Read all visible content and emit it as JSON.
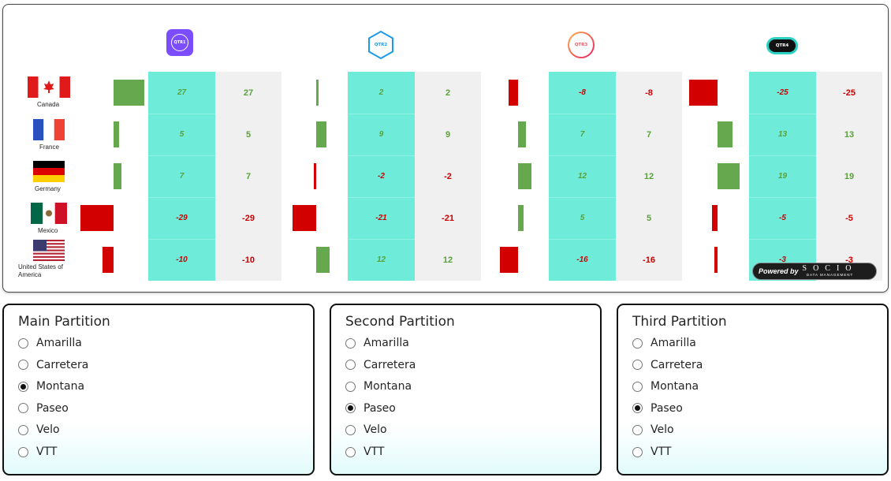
{
  "quarters": [
    "QTR1",
    "QTR2",
    "QTR3",
    "QTR4"
  ],
  "countries": [
    "Canada",
    "France",
    "Germany",
    "Mexico",
    "United States of America"
  ],
  "values": [
    [
      27,
      2,
      -8,
      -25
    ],
    [
      5,
      9,
      7,
      13
    ],
    [
      7,
      -2,
      12,
      19
    ],
    [
      -29,
      -21,
      5,
      -5
    ],
    [
      -10,
      12,
      -16,
      -3
    ]
  ],
  "colors": {
    "positive": "#65a84d",
    "negative": "#d30000",
    "teal": "#6eecd9",
    "grey": "#f0f0f0"
  },
  "powered_by": {
    "prefix": "Powered by",
    "brand": "SOCIO",
    "tagline": "DATA MANAGEMENT"
  },
  "panels": [
    {
      "title": "Main Partition",
      "options": [
        "Amarilla",
        "Carretera",
        "Montana",
        "Paseo",
        "Velo",
        "VTT"
      ],
      "selected": "Montana"
    },
    {
      "title": "Second Partition",
      "options": [
        "Amarilla",
        "Carretera",
        "Montana",
        "Paseo",
        "Velo",
        "VTT"
      ],
      "selected": "Paseo"
    },
    {
      "title": "Third Partition",
      "options": [
        "Amarilla",
        "Carretera",
        "Montana",
        "Paseo",
        "Velo",
        "VTT"
      ],
      "selected": "Paseo"
    }
  ]
}
